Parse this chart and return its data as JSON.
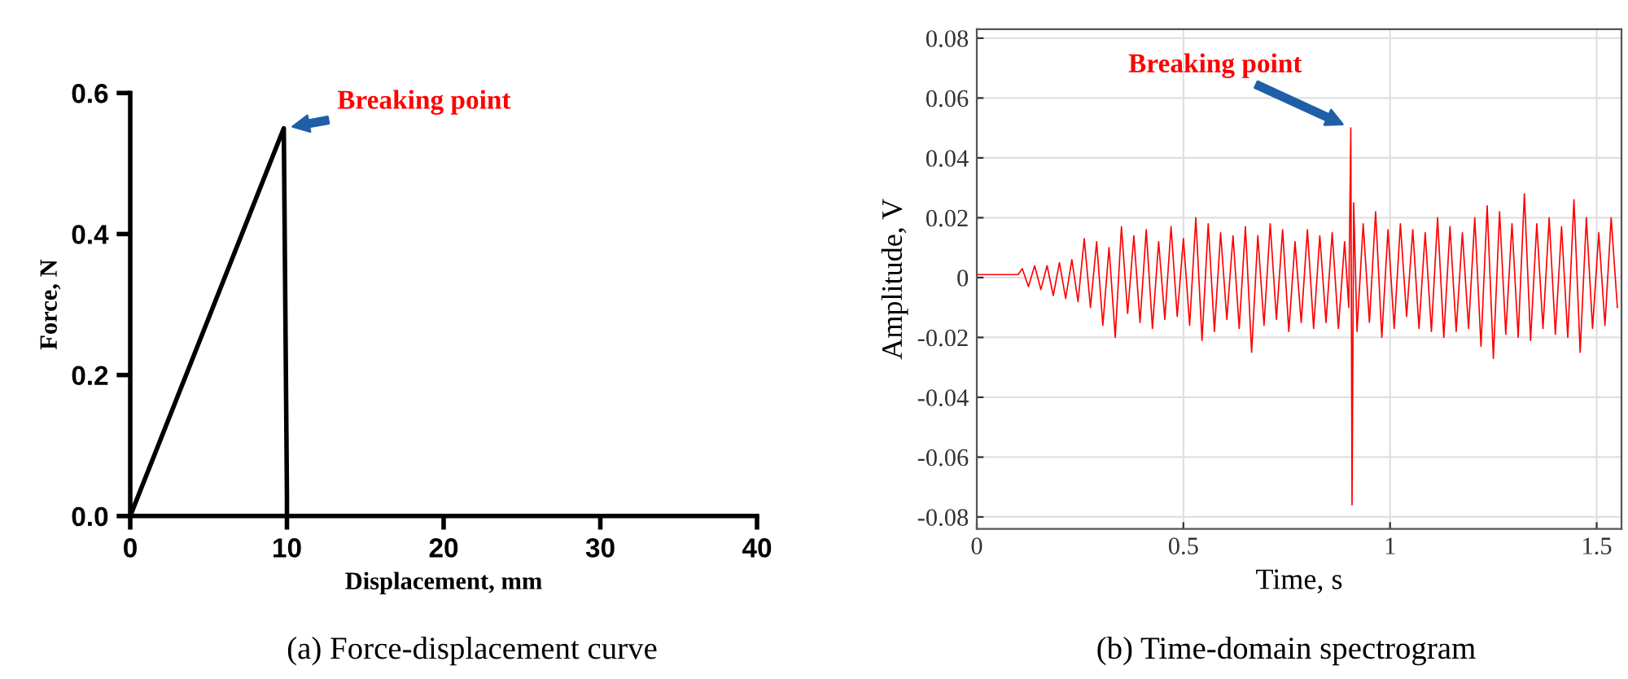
{
  "chart_data": [
    {
      "type": "line",
      "xlabel": "Displacement, mm",
      "ylabel": "Force, N",
      "x": [
        0,
        9.8,
        10,
        10
      ],
      "series": [
        {
          "color": "#000000",
          "values": [
            0,
            0.55,
            0.03,
            0
          ]
        }
      ],
      "xlim": [
        0,
        40
      ],
      "xticks": [
        0,
        10,
        20,
        30,
        40
      ],
      "ylim": [
        0,
        0.6
      ],
      "yticks": [
        {
          "value": 0,
          "label": "0.0"
        },
        0.2,
        0.4,
        0.6
      ],
      "grid": false,
      "annotations": [
        {
          "text": "Breaking point",
          "x": 9.8,
          "y": 0.55
        },
        "(a) Force-displacement curve"
      ]
    },
    {
      "type": "line",
      "xlabel": "Time, s",
      "ylabel": "Amplitude, V",
      "x": [
        0.0,
        0.1,
        0.11,
        0.125,
        0.14,
        0.155,
        0.17,
        0.185,
        0.2,
        0.215,
        0.23,
        0.245,
        0.26,
        0.275,
        0.29,
        0.305,
        0.32,
        0.335,
        0.35,
        0.365,
        0.38,
        0.395,
        0.41,
        0.425,
        0.44,
        0.455,
        0.47,
        0.485,
        0.5,
        0.515,
        0.53,
        0.545,
        0.56,
        0.575,
        0.59,
        0.605,
        0.62,
        0.635,
        0.65,
        0.665,
        0.68,
        0.695,
        0.71,
        0.725,
        0.74,
        0.755,
        0.77,
        0.785,
        0.8,
        0.815,
        0.83,
        0.845,
        0.86,
        0.875,
        0.89,
        0.9,
        0.905,
        0.908,
        0.912,
        0.92,
        0.935,
        0.95,
        0.965,
        0.98,
        0.995,
        1.01,
        1.025,
        1.04,
        1.055,
        1.07,
        1.085,
        1.1,
        1.115,
        1.13,
        1.145,
        1.16,
        1.175,
        1.19,
        1.205,
        1.22,
        1.235,
        1.25,
        1.265,
        1.28,
        1.295,
        1.31,
        1.325,
        1.34,
        1.355,
        1.37,
        1.385,
        1.4,
        1.415,
        1.43,
        1.445,
        1.46,
        1.475,
        1.49,
        1.505,
        1.52,
        1.535,
        1.55
      ],
      "series": [
        {
          "color": "#ff0000",
          "values": [
            0.001,
            0.001,
            0.003,
            -0.003,
            0.004,
            -0.004,
            0.004,
            -0.006,
            0.005,
            -0.007,
            0.006,
            -0.008,
            0.013,
            -0.01,
            0.012,
            -0.016,
            0.01,
            -0.02,
            0.017,
            -0.012,
            0.014,
            -0.015,
            0.016,
            -0.017,
            0.012,
            -0.014,
            0.017,
            -0.013,
            0.013,
            -0.016,
            0.02,
            -0.021,
            0.018,
            -0.018,
            0.015,
            -0.014,
            0.014,
            -0.017,
            0.017,
            -0.025,
            0.014,
            -0.016,
            0.018,
            -0.014,
            0.016,
            -0.018,
            0.012,
            -0.015,
            0.016,
            -0.017,
            0.014,
            -0.015,
            0.015,
            -0.017,
            0.012,
            -0.01,
            0.05,
            -0.076,
            0.025,
            -0.018,
            0.018,
            -0.015,
            0.022,
            -0.02,
            0.016,
            -0.017,
            0.018,
            -0.013,
            0.016,
            -0.017,
            0.015,
            -0.018,
            0.02,
            -0.02,
            0.017,
            -0.018,
            0.015,
            -0.017,
            0.02,
            -0.023,
            0.024,
            -0.027,
            0.022,
            -0.019,
            0.018,
            -0.02,
            0.028,
            -0.021,
            0.018,
            -0.017,
            0.02,
            -0.019,
            0.017,
            -0.02,
            0.026,
            -0.025,
            0.02,
            -0.017,
            0.015,
            -0.016,
            0.02,
            -0.01
          ]
        }
      ],
      "xlim": [
        0,
        1.56
      ],
      "xticks": [
        0,
        0.5,
        1,
        1.5
      ],
      "ylim": [
        -0.084,
        0.083
      ],
      "yticks": [
        -0.08,
        -0.06,
        -0.04,
        -0.02,
        0,
        0.02,
        0.04,
        0.06,
        0.08
      ],
      "grid": true,
      "annotations": [
        {
          "text": "Breaking point",
          "x": 0.905,
          "y": 0.05
        },
        "(b) Time-domain spectrogram"
      ]
    }
  ]
}
